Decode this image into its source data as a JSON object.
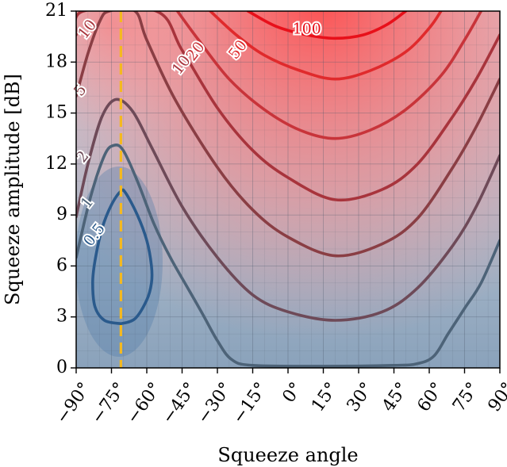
{
  "chart_data": {
    "type": "heatmap",
    "title": "",
    "xlabel": "Squeeze angle",
    "ylabel": "Squeeze amplitude [dB]",
    "xlim": [
      -90,
      90
    ],
    "ylim": [
      0,
      21
    ],
    "grid": true,
    "x_ticks": [
      -90,
      -75,
      -60,
      -45,
      -30,
      -15,
      0,
      15,
      30,
      45,
      60,
      75,
      90
    ],
    "x_tick_labels": [
      "−90°",
      "−75°",
      "−60°",
      "−45°",
      "−30°",
      "−15°",
      "0°",
      "15°",
      "30°",
      "45°",
      "60°",
      "75°",
      "90°"
    ],
    "y_ticks": [
      0,
      3,
      6,
      9,
      12,
      15,
      18,
      21
    ],
    "y_tick_labels": [
      "0",
      "3",
      "6",
      "9",
      "12",
      "15",
      "18",
      "21"
    ],
    "marker_line": {
      "x": -71,
      "style": "dashed",
      "color": "#f5b91e"
    },
    "contours": [
      {
        "level": 0.5,
        "label": "0.5",
        "color": "#2a5a8c",
        "points": [
          [
            -71,
            2.6
          ],
          [
            -65,
            2.9
          ],
          [
            -60,
            4.0
          ],
          [
            -58,
            5.0
          ],
          [
            -58,
            6.0
          ],
          [
            -60,
            7.5
          ],
          [
            -64,
            9.0
          ],
          [
            -69,
            10.3
          ],
          [
            -71,
            10.4
          ],
          [
            -75,
            9.6
          ],
          [
            -79,
            8.2
          ],
          [
            -82,
            6.3
          ],
          [
            -83,
            5.0
          ],
          [
            -82,
            3.6
          ],
          [
            -78,
            2.8
          ],
          [
            -71,
            2.6
          ]
        ],
        "label_at": [
          -82,
          7.8
        ]
      },
      {
        "level": 1,
        "label": "1",
        "color": "#4d6378",
        "points": [
          [
            -90,
            6.5
          ],
          [
            -84,
            10.0
          ],
          [
            -78,
            12.5
          ],
          [
            -74,
            13.1
          ],
          [
            -70,
            12.8
          ],
          [
            -64,
            11.0
          ],
          [
            -57,
            8.5
          ],
          [
            -50,
            6.5
          ],
          [
            -43,
            4.8
          ],
          [
            -36,
            3.1
          ],
          [
            -30,
            1.6
          ],
          [
            -24,
            0.5
          ],
          [
            -15,
            0.15
          ],
          [
            15,
            0.1
          ],
          [
            45,
            0.15
          ],
          [
            55,
            0.25
          ],
          [
            62,
            0.7
          ],
          [
            68,
            2.0
          ],
          [
            75,
            3.5
          ],
          [
            82,
            5.0
          ],
          [
            90,
            7.5
          ]
        ],
        "label_at": [
          -85,
          9.7
        ]
      },
      {
        "level": 2,
        "label": "2",
        "color": "#6e4a58",
        "points": [
          [
            -90,
            8.9
          ],
          [
            -85,
            12.0
          ],
          [
            -79,
            14.8
          ],
          [
            -73,
            15.8
          ],
          [
            -66,
            15.1
          ],
          [
            -58,
            13.0
          ],
          [
            -45,
            9.5
          ],
          [
            -30,
            6.5
          ],
          [
            -15,
            4.3
          ],
          [
            0,
            3.3
          ],
          [
            20,
            2.8
          ],
          [
            40,
            3.3
          ],
          [
            55,
            4.7
          ],
          [
            70,
            7.2
          ],
          [
            80,
            9.5
          ],
          [
            90,
            12.5
          ]
        ],
        "label_at": [
          -87,
          12.4
        ]
      },
      {
        "level": 5,
        "label": "5",
        "color": "#8a3e44",
        "points": [
          [
            -90,
            16.0
          ],
          [
            -85,
            18.5
          ],
          [
            -80,
            20.4
          ],
          [
            -76,
            21.0
          ],
          [
            -65,
            21.0
          ],
          [
            -60,
            19.3
          ],
          [
            -48,
            15.8
          ],
          [
            -30,
            11.8
          ],
          [
            -15,
            9.3
          ],
          [
            0,
            7.7
          ],
          [
            20,
            6.6
          ],
          [
            40,
            7.3
          ],
          [
            55,
            8.8
          ],
          [
            70,
            11.8
          ],
          [
            80,
            14.2
          ],
          [
            90,
            17.0
          ]
        ],
        "label_at": [
          -88,
          16.3
        ]
      },
      {
        "level": 10,
        "label": "10",
        "color": "#a8343c",
        "points": [
          [
            -90,
            19.6
          ],
          [
            -87,
            21.0
          ],
          [
            -56,
            21.0
          ],
          [
            -45,
            18.7
          ],
          [
            -30,
            15.3
          ],
          [
            -15,
            12.8
          ],
          [
            0,
            11.2
          ],
          [
            20,
            9.9
          ],
          [
            40,
            10.5
          ],
          [
            55,
            12.0
          ],
          [
            70,
            14.8
          ],
          [
            80,
            17.0
          ],
          [
            90,
            19.6
          ]
        ],
        "label_at": [
          -85,
          19.9
        ],
        "label2_at": [
          -45,
          17.8
        ]
      },
      {
        "level": 20,
        "label": "20",
        "color": "#c8343a",
        "points": [
          [
            -47,
            21.0
          ],
          [
            -38,
            19.3
          ],
          [
            -25,
            17.0
          ],
          [
            -10,
            15.2
          ],
          [
            5,
            14.0
          ],
          [
            20,
            13.5
          ],
          [
            35,
            14.0
          ],
          [
            50,
            15.2
          ],
          [
            65,
            17.2
          ],
          [
            75,
            19.3
          ],
          [
            82,
            21.0
          ]
        ],
        "label_at": [
          -39,
          18.6
        ]
      },
      {
        "level": 50,
        "label": "50",
        "color": "#e02a2c",
        "points": [
          [
            -33,
            21.0
          ],
          [
            -22,
            19.6
          ],
          [
            -10,
            18.4
          ],
          [
            5,
            17.5
          ],
          [
            20,
            17.0
          ],
          [
            35,
            17.5
          ],
          [
            50,
            18.6
          ],
          [
            60,
            20.0
          ],
          [
            65,
            21.0
          ]
        ],
        "label_at": [
          -21,
          18.7
        ]
      },
      {
        "level": 100,
        "label": "100",
        "color": "#e8101a",
        "points": [
          [
            -17,
            21.0
          ],
          [
            -5,
            20.1
          ],
          [
            8,
            19.6
          ],
          [
            20,
            19.4
          ],
          [
            32,
            19.6
          ],
          [
            42,
            20.2
          ],
          [
            50,
            21.0
          ]
        ],
        "label_at": [
          8,
          19.9
        ]
      }
    ]
  }
}
